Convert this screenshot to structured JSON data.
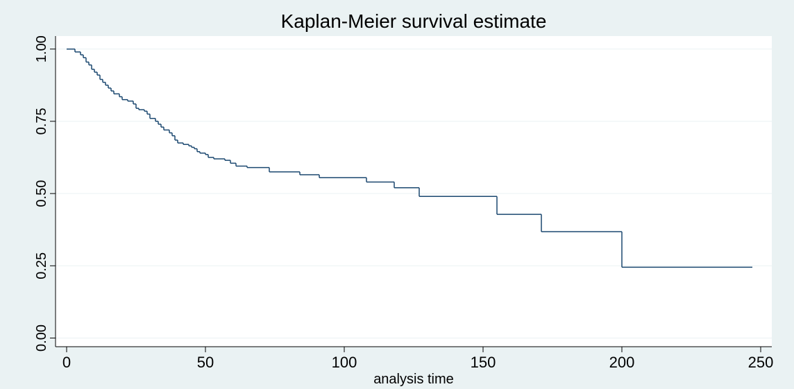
{
  "chart_data": {
    "type": "step",
    "title": "Kaplan-Meier survival estimate",
    "x_label": "analysis time",
    "x": [
      0,
      3,
      5,
      6,
      7,
      8,
      9,
      10,
      11,
      12,
      13,
      14,
      15,
      16,
      17,
      19,
      20,
      22,
      24,
      25,
      26,
      28,
      29,
      30,
      32,
      33,
      34,
      35,
      37,
      38,
      39,
      40,
      42,
      44,
      45,
      46,
      47,
      48,
      50,
      51,
      53,
      57,
      59,
      61,
      65,
      73,
      84,
      91,
      108,
      118,
      127,
      155,
      171,
      200,
      247
    ],
    "values": [
      1.0,
      0.99,
      0.98,
      0.97,
      0.955,
      0.945,
      0.93,
      0.92,
      0.91,
      0.895,
      0.885,
      0.875,
      0.865,
      0.855,
      0.845,
      0.835,
      0.825,
      0.82,
      0.81,
      0.795,
      0.79,
      0.785,
      0.775,
      0.76,
      0.75,
      0.74,
      0.73,
      0.72,
      0.71,
      0.7,
      0.685,
      0.675,
      0.67,
      0.665,
      0.66,
      0.655,
      0.645,
      0.64,
      0.635,
      0.625,
      0.62,
      0.615,
      0.605,
      0.595,
      0.59,
      0.575,
      0.565,
      0.555,
      0.54,
      0.52,
      0.49,
      0.428,
      0.368,
      0.245,
      0.245
    ],
    "color": "#1a476f",
    "xlim": [
      -4,
      254
    ],
    "ylim": [
      -0.03,
      1.045
    ],
    "xticks": [
      0,
      50,
      100,
      150,
      200,
      250
    ],
    "yticks": [
      {
        "value": 0,
        "label": "0.00"
      },
      {
        "value": 0.25,
        "label": "0.25"
      },
      {
        "value": 0.5,
        "label": "0.50"
      },
      {
        "value": 0.75,
        "label": "0.75"
      },
      {
        "value": 1,
        "label": "1.00"
      }
    ],
    "grid": true
  }
}
